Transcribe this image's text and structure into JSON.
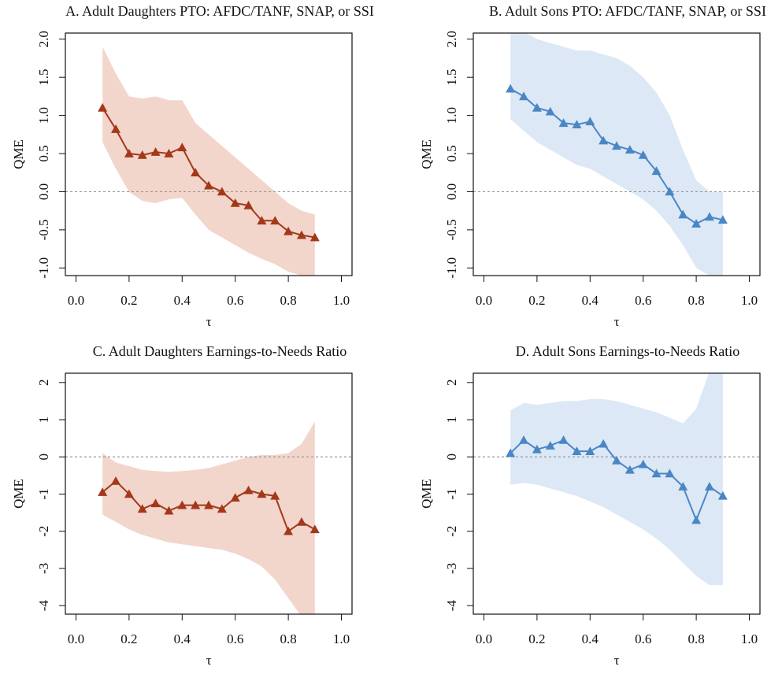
{
  "chart_data": [
    {
      "type": "line",
      "title": "A. Adult Daughters PTO: AFDC/TANF, SNAP, or SSI",
      "xlabel": "τ",
      "ylabel": "QME",
      "color": "#a3381a",
      "band_color": "#f2d5cb",
      "hline": 0,
      "x": [
        0.1,
        0.15,
        0.2,
        0.25,
        0.3,
        0.35,
        0.4,
        0.45,
        0.5,
        0.55,
        0.6,
        0.65,
        0.7,
        0.75,
        0.8,
        0.85,
        0.9
      ],
      "values": [
        1.1,
        0.82,
        0.5,
        0.48,
        0.52,
        0.5,
        0.58,
        0.25,
        0.08,
        0.0,
        -0.15,
        -0.18,
        -0.38,
        -0.38,
        -0.52,
        -0.57,
        -0.6
      ],
      "band_upper": [
        1.9,
        1.55,
        1.25,
        1.22,
        1.25,
        1.2,
        1.2,
        0.9,
        0.75,
        0.6,
        0.45,
        0.3,
        0.15,
        0.0,
        -0.15,
        -0.25,
        -0.3
      ],
      "band_lower": [
        0.65,
        0.3,
        0.0,
        -0.12,
        -0.15,
        -0.1,
        -0.08,
        -0.3,
        -0.5,
        -0.6,
        -0.7,
        -0.8,
        -0.88,
        -0.95,
        -1.05,
        -1.1,
        -1.1
      ],
      "xlim": [
        -0.04,
        1.04
      ],
      "ylim": [
        -1.1,
        2.08
      ],
      "xticks": [
        {
          "value": 0,
          "label": "0.0"
        },
        0.2,
        0.4,
        0.6,
        0.8,
        {
          "value": 1,
          "label": "1.0"
        }
      ],
      "yticks": [
        {
          "value": -1,
          "label": "-1.0"
        },
        -0.5,
        {
          "value": 0,
          "label": "0.0"
        },
        0.5,
        {
          "value": 1,
          "label": "1.0"
        },
        1.5,
        {
          "value": 2,
          "label": "2.0"
        }
      ]
    },
    {
      "type": "line",
      "title": "B. Adult Sons PTO: AFDC/TANF, SNAP, or SSI",
      "xlabel": "τ",
      "ylabel": "QME",
      "color": "#4a86c5",
      "band_color": "#dce8f5",
      "hline": 0,
      "x": [
        0.1,
        0.15,
        0.2,
        0.25,
        0.3,
        0.35,
        0.4,
        0.45,
        0.5,
        0.55,
        0.6,
        0.65,
        0.7,
        0.75,
        0.8,
        0.85,
        0.9
      ],
      "values": [
        1.35,
        1.25,
        1.1,
        1.05,
        0.9,
        0.88,
        0.92,
        0.67,
        0.6,
        0.55,
        0.48,
        0.27,
        0.0,
        -0.3,
        -0.42,
        -0.33,
        -0.37
      ],
      "band_upper": [
        2.2,
        2.1,
        2.0,
        1.95,
        1.9,
        1.85,
        1.85,
        1.8,
        1.75,
        1.65,
        1.5,
        1.3,
        1.0,
        0.55,
        0.15,
        0.0,
        0.0
      ],
      "band_lower": [
        0.95,
        0.8,
        0.65,
        0.55,
        0.45,
        0.35,
        0.3,
        0.2,
        0.1,
        0.0,
        -0.1,
        -0.25,
        -0.45,
        -0.7,
        -1.0,
        -1.1,
        -1.1
      ],
      "xlim": [
        -0.04,
        1.04
      ],
      "ylim": [
        -1.1,
        2.08
      ],
      "xticks": [
        {
          "value": 0,
          "label": "0.0"
        },
        0.2,
        0.4,
        0.6,
        0.8,
        {
          "value": 1,
          "label": "1.0"
        }
      ],
      "yticks": [
        {
          "value": -1,
          "label": "-1.0"
        },
        -0.5,
        {
          "value": 0,
          "label": "0.0"
        },
        0.5,
        {
          "value": 1,
          "label": "1.0"
        },
        1.5,
        {
          "value": 2,
          "label": "2.0"
        }
      ]
    },
    {
      "type": "line",
      "title": "C. Adult Daughters Earnings-to-Needs Ratio",
      "xlabel": "τ",
      "ylabel": "QME",
      "color": "#a3381a",
      "band_color": "#f2d5cb",
      "hline": 0,
      "x": [
        0.1,
        0.15,
        0.2,
        0.25,
        0.3,
        0.35,
        0.4,
        0.45,
        0.5,
        0.55,
        0.6,
        0.65,
        0.7,
        0.75,
        0.8,
        0.85,
        0.9
      ],
      "values": [
        -0.95,
        -0.65,
        -1.0,
        -1.4,
        -1.25,
        -1.45,
        -1.3,
        -1.3,
        -1.3,
        -1.4,
        -1.1,
        -0.9,
        -1.0,
        -1.05,
        -2.0,
        -1.75,
        -1.95
      ],
      "band_upper": [
        0.1,
        -0.15,
        -0.25,
        -0.35,
        -0.38,
        -0.4,
        -0.38,
        -0.35,
        -0.3,
        -0.2,
        -0.1,
        0.0,
        0.05,
        0.05,
        0.1,
        0.35,
        0.95
      ],
      "band_lower": [
        -1.55,
        -1.75,
        -1.95,
        -2.1,
        -2.2,
        -2.3,
        -2.35,
        -2.4,
        -2.45,
        -2.5,
        -2.6,
        -2.75,
        -2.95,
        -3.3,
        -3.8,
        -4.3,
        -4.3
      ],
      "xlim": [
        -0.04,
        1.04
      ],
      "ylim": [
        -4.23,
        2.25
      ],
      "xticks": [
        {
          "value": 0,
          "label": "0.0"
        },
        0.2,
        0.4,
        0.6,
        0.8,
        {
          "value": 1,
          "label": "1.0"
        }
      ],
      "yticks": [
        -4,
        -3,
        -2,
        -1,
        0,
        1,
        2
      ]
    },
    {
      "type": "line",
      "title": "D. Adult Sons Earnings-to-Needs Ratio",
      "xlabel": "τ",
      "ylabel": "QME",
      "color": "#4a86c5",
      "band_color": "#dce8f5",
      "hline": 0,
      "x": [
        0.1,
        0.15,
        0.2,
        0.25,
        0.3,
        0.35,
        0.4,
        0.45,
        0.5,
        0.55,
        0.6,
        0.65,
        0.7,
        0.75,
        0.8,
        0.85,
        0.9
      ],
      "values": [
        0.1,
        0.45,
        0.2,
        0.3,
        0.45,
        0.15,
        0.15,
        0.35,
        -0.1,
        -0.35,
        -0.2,
        -0.45,
        -0.45,
        -0.8,
        -1.7,
        -0.8,
        -1.05
      ],
      "band_upper": [
        1.25,
        1.45,
        1.4,
        1.45,
        1.5,
        1.5,
        1.55,
        1.55,
        1.5,
        1.4,
        1.3,
        1.2,
        1.05,
        0.9,
        1.3,
        2.3,
        2.5
      ],
      "band_lower": [
        -0.75,
        -0.7,
        -0.75,
        -0.85,
        -0.95,
        -1.05,
        -1.2,
        -1.35,
        -1.55,
        -1.75,
        -1.95,
        -2.2,
        -2.5,
        -2.85,
        -3.2,
        -3.45,
        -3.45
      ],
      "xlim": [
        -0.04,
        1.04
      ],
      "ylim": [
        -4.23,
        2.25
      ],
      "xticks": [
        {
          "value": 0,
          "label": "0.0"
        },
        0.2,
        0.4,
        0.6,
        0.8,
        {
          "value": 1,
          "label": "1.0"
        }
      ],
      "yticks": [
        -4,
        -3,
        -2,
        -1,
        0,
        1,
        2
      ]
    }
  ]
}
